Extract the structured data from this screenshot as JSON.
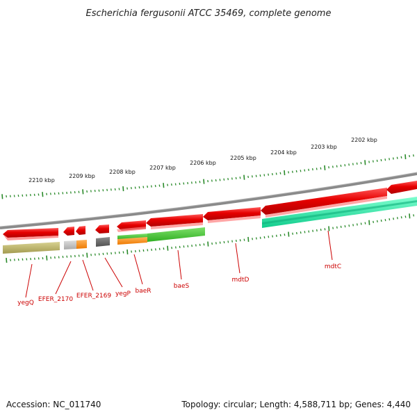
{
  "title": "Escherichia fergusonii ATCC 35469, complete genome",
  "footer": {
    "accession": "Accession: NC_011740",
    "topology": "Topology: circular; Length: 4,588,711 bp; Genes: 4,440"
  },
  "kbp_labels": [
    "2210 kbp",
    "2209 kbp",
    "2208 kbp",
    "2207 kbp",
    "2206 kbp",
    "2205 kbp",
    "2204 kbp",
    "2203 kbp",
    "2202 kbp"
  ],
  "gene_labels": [
    "yegQ",
    "EFER_2170",
    "EFER_2169",
    "yegP",
    "baeR",
    "baeS",
    "mdtD",
    "mdtC"
  ],
  "colors": {
    "backbone": "#8a8a8a",
    "gene_red": "#e00000",
    "label_red": "#cc0000",
    "tick_green": "#2a8a2a",
    "olive": "#b5ad60",
    "light_gray": "#c2c2c2",
    "orange": "#ff8c1a",
    "dark_gray": "#6a6a6a",
    "green": "#44cc33",
    "teal": "#1de9a8"
  }
}
